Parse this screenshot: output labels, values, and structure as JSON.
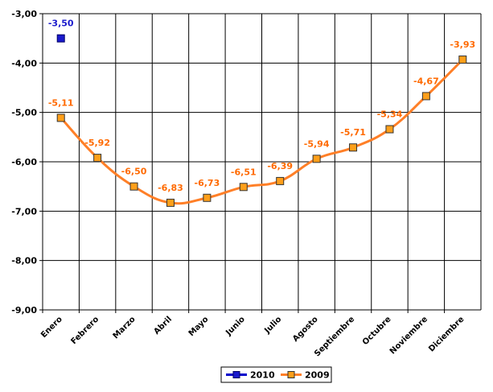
{
  "chart_data": {
    "type": "line",
    "categories": [
      "Enero",
      "Febrero",
      "Marzo",
      "Abril",
      "Mayo",
      "Junio",
      "Julio",
      "Agosto",
      "Septiembre",
      "Octubre",
      "Noviembre",
      "Diciembre"
    ],
    "ylim": [
      -9.0,
      -3.0
    ],
    "yticks": [
      -3.0,
      -4.0,
      -5.0,
      -6.0,
      -7.0,
      -8.0,
      -9.0
    ],
    "ytick_labels": [
      "-3,00",
      "-4,00",
      "-5,00",
      "-6,00",
      "-7,00",
      "-8,00",
      "-9,00"
    ],
    "grid": "horizontal-and-vertical",
    "legend_position": "bottom",
    "series": [
      {
        "name": "2010",
        "color": "#0000cc",
        "marker_fill": "#1a1acc",
        "label_color": "#1a1acc",
        "values": [
          -3.5,
          null,
          null,
          null,
          null,
          null,
          null,
          null,
          null,
          null,
          null,
          null
        ],
        "labels": [
          "-3,50",
          "",
          "",
          "",
          "",
          "",
          "",
          "",
          "",
          "",
          "",
          ""
        ]
      },
      {
        "name": "2009",
        "color": "#ff7f27",
        "marker_fill": "#ff9f1a",
        "label_color": "#ff6a00",
        "values": [
          -5.11,
          -5.92,
          -6.5,
          -6.83,
          -6.73,
          -6.51,
          -6.39,
          -5.94,
          -5.71,
          -5.34,
          -4.67,
          -3.93
        ],
        "labels": [
          "-5,11",
          "-5,92",
          "-6,50",
          "-6,83",
          "-6,73",
          "-6,51",
          "-6,39",
          "-5,94",
          "-5,71",
          "-5,34",
          "-4,67",
          "-3,93"
        ]
      }
    ]
  }
}
